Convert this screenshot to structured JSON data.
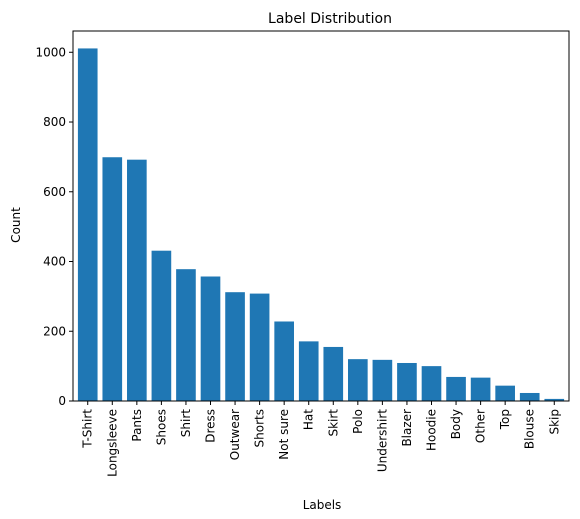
{
  "chart_data": {
    "type": "bar",
    "title": "Label Distribution",
    "xlabel": "Labels",
    "ylabel": "Count",
    "categories": [
      "T-Shirt",
      "Longsleeve",
      "Pants",
      "Shoes",
      "Shirt",
      "Dress",
      "Outwear",
      "Shorts",
      "Not sure",
      "Hat",
      "Skirt",
      "Polo",
      "Undershirt",
      "Blazer",
      "Hoodie",
      "Body",
      "Other",
      "Top",
      "Blouse",
      "Skip"
    ],
    "values": [
      1011,
      699,
      692,
      431,
      378,
      357,
      312,
      308,
      228,
      171,
      155,
      120,
      118,
      109,
      100,
      69,
      67,
      44,
      23,
      6
    ],
    "ylim": [
      0,
      1061
    ],
    "yticks": [
      0,
      200,
      400,
      600,
      800,
      1000
    ],
    "bar_color": "#1f77b4",
    "grid": false,
    "legend": false
  }
}
